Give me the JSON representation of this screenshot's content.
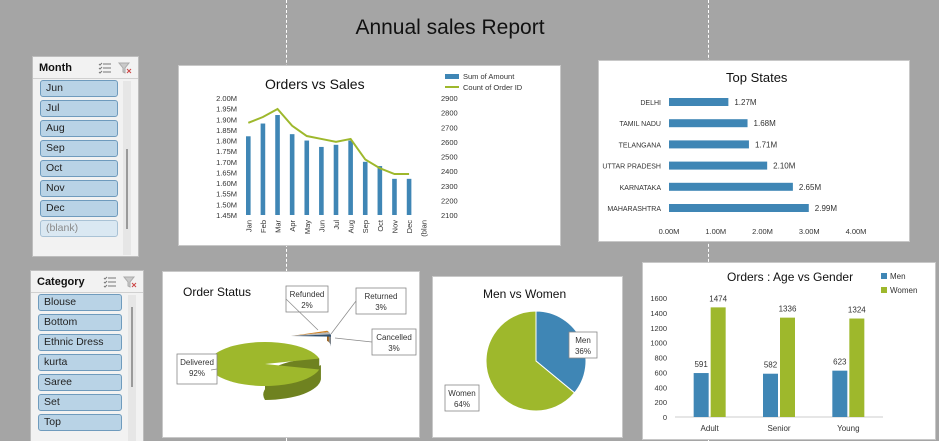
{
  "report": {
    "title": "Annual sales Report"
  },
  "slicers": {
    "month": {
      "title": "Month",
      "items": [
        "Jun",
        "Jul",
        "Aug",
        "Sep",
        "Oct",
        "Nov",
        "Dec",
        "(blank)"
      ]
    },
    "category": {
      "title": "Category",
      "items": [
        "Blouse",
        "Bottom",
        "Ethnic Dress",
        "kurta",
        "Saree",
        "Set",
        "Top"
      ]
    }
  },
  "colors": {
    "blue": "#3f86b5",
    "green": "#9eb82c"
  },
  "chart_data": [
    {
      "id": "orders-vs-sales",
      "type": "bar",
      "title": "Orders vs Sales",
      "categories": [
        "Jan",
        "Feb",
        "Mar",
        "Apr",
        "May",
        "Jun",
        "Jul",
        "Aug",
        "Sep",
        "Oct",
        "Nov",
        "Dec",
        "(blan"
      ],
      "series": [
        {
          "name": "Sum of Amount",
          "type": "bar",
          "axis": "left",
          "values": [
            1.82,
            1.88,
            1.92,
            1.83,
            1.8,
            1.77,
            1.78,
            1.8,
            1.7,
            1.68,
            1.62,
            1.62,
            null
          ]
        },
        {
          "name": "Count of Order ID",
          "type": "line",
          "axis": "right",
          "values": [
            2730,
            2770,
            2825,
            2710,
            2640,
            2620,
            2600,
            2620,
            2480,
            2420,
            2380,
            2380,
            null
          ]
        }
      ],
      "y_left": {
        "min": 1.45,
        "max": 2.0,
        "step": 0.05,
        "unit": "M"
      },
      "y_right": {
        "min": 2100,
        "max": 2900,
        "step": 100
      },
      "legend": "top-right"
    },
    {
      "id": "top-states",
      "type": "bar",
      "orientation": "horizontal",
      "title": "Top States",
      "categories": [
        "DELHI",
        "TAMIL NADU",
        "TELANGANA",
        "UTTAR PRADESH",
        "KARNATAKA",
        "MAHARASHTRA"
      ],
      "values": [
        1.27,
        1.68,
        1.71,
        2.1,
        2.65,
        2.99
      ],
      "labels": [
        "1.27M",
        "1.68M",
        "1.71M",
        "2.10M",
        "2.65M",
        "2.99M"
      ],
      "xlim": [
        0,
        4
      ],
      "xticks": [
        "0.00M",
        "1.00M",
        "2.00M",
        "3.00M",
        "4.00M"
      ]
    },
    {
      "id": "order-status",
      "type": "pie",
      "title": "Order Status",
      "slices": [
        {
          "name": "Delivered",
          "value": 92,
          "label": "92%"
        },
        {
          "name": "Refunded",
          "value": 2,
          "label": "2%"
        },
        {
          "name": "Returned",
          "value": 3,
          "label": "3%"
        },
        {
          "name": "Cancelled",
          "value": 3,
          "label": "3%"
        }
      ]
    },
    {
      "id": "men-vs-women",
      "type": "pie",
      "title": "Men vs Women",
      "slices": [
        {
          "name": "Men",
          "value": 36,
          "label": "36%"
        },
        {
          "name": "Women",
          "value": 64,
          "label": "64%"
        }
      ]
    },
    {
      "id": "age-vs-gender",
      "type": "bar",
      "title": "Orders : Age vs Gender",
      "categories": [
        "Adult",
        "Senior",
        "Young"
      ],
      "series": [
        {
          "name": "Men",
          "values": [
            591,
            582,
            623
          ]
        },
        {
          "name": "Women",
          "values": [
            1474,
            1336,
            1324
          ]
        }
      ],
      "ylim": [
        0,
        1600
      ],
      "ystep": 200,
      "legend": "top-right"
    }
  ]
}
